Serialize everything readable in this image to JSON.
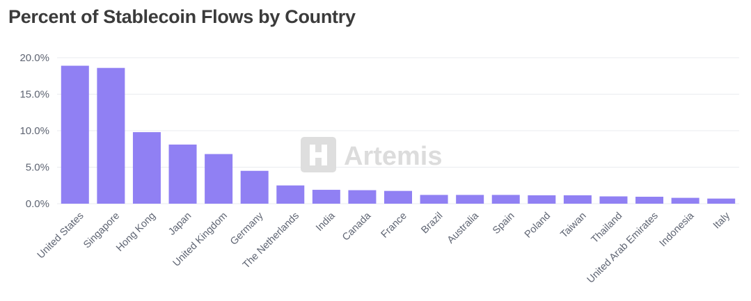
{
  "chart_data": {
    "type": "bar",
    "title": "Percent of Stablecoin Flows by Country",
    "xlabel": "",
    "ylabel": "",
    "ylim": [
      0,
      20
    ],
    "yticks": [
      "0.0%",
      "5.0%",
      "10.0%",
      "15.0%",
      "20.0%"
    ],
    "grid": true,
    "legend": "none",
    "categories": [
      "United States",
      "Singapore",
      "Hong Kong",
      "Japan",
      "United Kingdom",
      "Germany",
      "The Netherlands",
      "India",
      "Canada",
      "France",
      "Brazil",
      "Australia",
      "Spain",
      "Poland",
      "Taiwan",
      "Thailand",
      "United Arab Emirates",
      "Indonesia",
      "Italy"
    ],
    "values": [
      18.9,
      18.6,
      9.8,
      8.1,
      6.8,
      4.5,
      2.5,
      1.9,
      1.85,
      1.75,
      1.2,
      1.2,
      1.2,
      1.15,
      1.15,
      1.0,
      0.95,
      0.8,
      0.7
    ],
    "bar_color": "#9080f3"
  },
  "watermark": {
    "text": "Artemis",
    "icon": "artemis-logo-icon"
  }
}
